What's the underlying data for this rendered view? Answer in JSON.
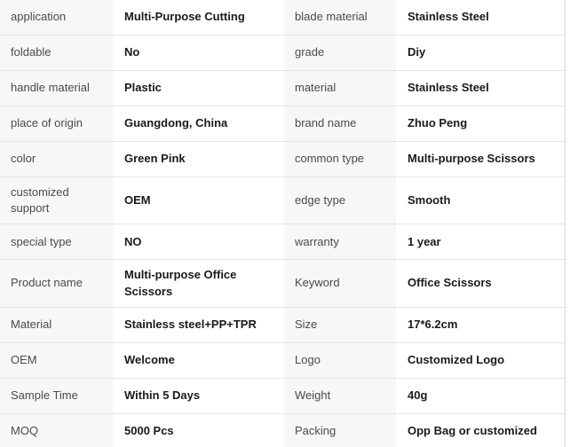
{
  "colors": {
    "label-bg": "#f7f7f7",
    "value-bg": "#ffffff",
    "divider": "#e4e4e4",
    "label-text": "#4a4a4a",
    "value-text": "#1a1a1a",
    "right-border": "#d9d9d9"
  },
  "table": {
    "rows": [
      {
        "label_left": "application",
        "value_left": "Multi-Purpose Cutting",
        "label_right": "blade material",
        "value_right": "Stainless Steel"
      },
      {
        "label_left": "foldable",
        "value_left": "No",
        "label_right": "grade",
        "value_right": "Diy"
      },
      {
        "label_left": "handle material",
        "value_left": "Plastic",
        "label_right": "material",
        "value_right": "Stainless Steel"
      },
      {
        "label_left": "place of origin",
        "value_left": "Guangdong, China",
        "label_right": "brand name",
        "value_right": "Zhuo Peng"
      },
      {
        "label_left": "color",
        "value_left": "Green Pink",
        "label_right": "common type",
        "value_right": "Multi-purpose Scissors"
      },
      {
        "label_left": "customized support",
        "value_left": "OEM",
        "label_right": "edge type",
        "value_right": "Smooth"
      },
      {
        "label_left": "special type",
        "value_left": "NO",
        "label_right": "warranty",
        "value_right": "1 year"
      },
      {
        "label_left": "Product name",
        "value_left": "Multi-purpose Office Scissors",
        "label_right": "Keyword",
        "value_right": "Office Scissors"
      },
      {
        "label_left": "Material",
        "value_left": "Stainless steel+PP+TPR",
        "label_right": "Size",
        "value_right": "17*6.2cm"
      },
      {
        "label_left": "OEM",
        "value_left": "Welcome",
        "label_right": "Logo",
        "value_right": "Customized Logo"
      },
      {
        "label_left": "Sample Time",
        "value_left": "Within 5 Days",
        "label_right": "Weight",
        "value_right": "40g"
      },
      {
        "label_left": "MOQ",
        "value_left": "5000 Pcs",
        "label_right": "Packing",
        "value_right": "Opp Bag or customized"
      }
    ]
  }
}
